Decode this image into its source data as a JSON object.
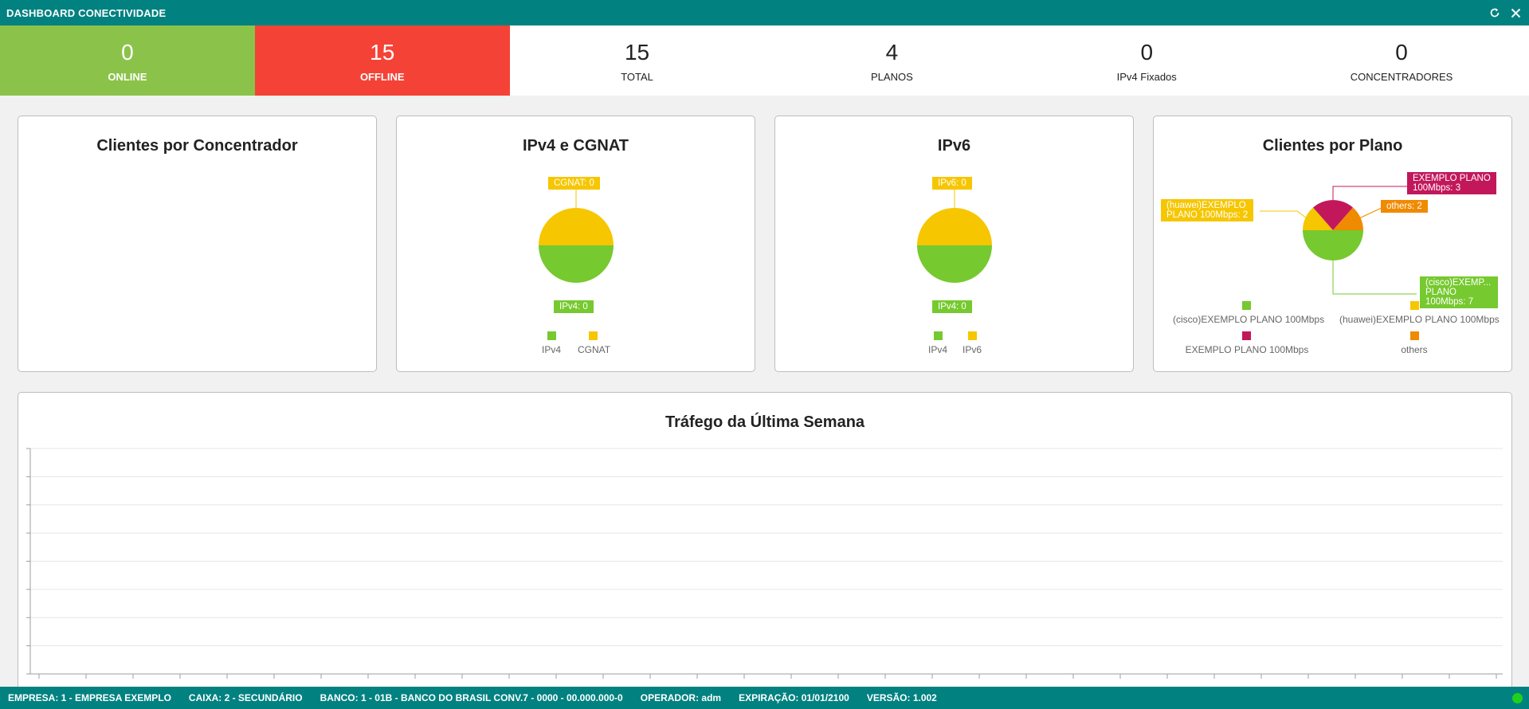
{
  "window": {
    "title": "DASHBOARD CONECTIVIDADE",
    "refresh_icon": "refresh-icon",
    "close_icon": "close-icon"
  },
  "stats": [
    {
      "value": "0",
      "label": "ONLINE"
    },
    {
      "value": "15",
      "label": "OFFLINE"
    },
    {
      "value": "15",
      "label": "TOTAL"
    },
    {
      "value": "4",
      "label": "PLANOS"
    },
    {
      "value": "0",
      "label": "IPv4 Fixados"
    },
    {
      "value": "0",
      "label": "CONCENTRADORES"
    }
  ],
  "colors": {
    "teal": "#028181",
    "online": "#8bc34a",
    "offline": "#f44336",
    "green": "#76c92f",
    "yellow": "#f6c600",
    "crimson": "#c2185b",
    "orange": "#f08a00"
  },
  "cards": {
    "concentrador": {
      "title": "Clientes por Concentrador"
    },
    "ipv4": {
      "title": "IPv4 e CGNAT",
      "label_top": "CGNAT: 0",
      "label_bottom": "IPv4: 0",
      "legend": [
        "IPv4",
        "CGNAT"
      ]
    },
    "ipv6": {
      "title": "IPv6",
      "label_top": "IPv6: 0",
      "label_bottom": "IPv4: 0",
      "legend": [
        "IPv4",
        "IPv6"
      ]
    },
    "plano": {
      "title": "Clientes por Plano",
      "labels": {
        "exemplo_1": "EXEMPLO PLANO",
        "exemplo_2": "100Mbps: 3",
        "huawei_1": "(huawei)EXEMPLO",
        "huawei_2": "PLANO 100Mbps: 2",
        "others": "others: 2",
        "cisco_1": "(cisco)EXEMP...",
        "cisco_2": "PLANO",
        "cisco_3": "100Mbps: 7"
      },
      "legend": [
        "(cisco)EXEMPLO PLANO 100Mbps",
        "(huawei)EXEMPLO PLANO 100Mbps",
        "EXEMPLO PLANO 100Mbps",
        "others"
      ]
    },
    "trafego": {
      "title": "Tráfego da Última Semana"
    }
  },
  "chart_data": [
    {
      "type": "pie",
      "title": "IPv4 e CGNAT",
      "categories": [
        "IPv4",
        "CGNAT"
      ],
      "values": [
        0,
        0
      ]
    },
    {
      "type": "pie",
      "title": "IPv6",
      "categories": [
        "IPv4",
        "IPv6"
      ],
      "values": [
        0,
        0
      ]
    },
    {
      "type": "pie",
      "title": "Clientes por Plano",
      "categories": [
        "(cisco)EXEMPLO PLANO 100Mbps",
        "(huawei)EXEMPLO PLANO 100Mbps",
        "EXEMPLO PLANO 100Mbps",
        "others"
      ],
      "values": [
        7,
        2,
        3,
        2
      ]
    },
    {
      "type": "line",
      "title": "Tráfego da Última Semana",
      "series": [],
      "grid": true
    }
  ],
  "footer": {
    "empresa": "EMPRESA: 1 - EMPRESA EXEMPLO",
    "caixa": "CAIXA: 2 - SECUNDÁRIO",
    "banco": "BANCO: 1 - 01B - BANCO DO BRASIL CONV.7 - 0000 - 00.000.000-0",
    "operador": "OPERADOR: adm",
    "expiracao": "EXPIRAÇÃO: 01/01/2100",
    "versao": "VERSÃO: 1.002"
  }
}
